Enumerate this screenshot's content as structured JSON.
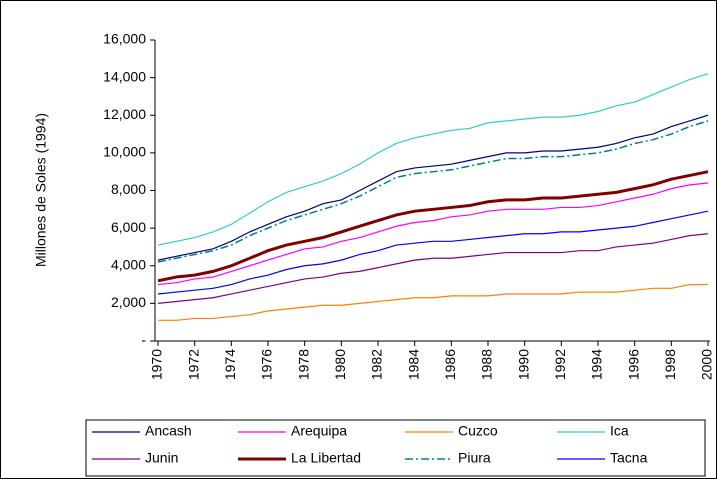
{
  "chart_data": {
    "type": "line",
    "y_label": "Millones de Soles (1994)",
    "x": [
      1970,
      1971,
      1972,
      1973,
      1974,
      1975,
      1976,
      1977,
      1978,
      1979,
      1980,
      1981,
      1982,
      1983,
      1984,
      1985,
      1986,
      1987,
      1988,
      1989,
      1990,
      1991,
      1992,
      1993,
      1994,
      1995,
      1996,
      1997,
      1998,
      1999,
      2000
    ],
    "xlim": [
      1970,
      2000
    ],
    "xticks": [
      1970,
      1972,
      1974,
      1976,
      1978,
      1980,
      1982,
      1984,
      1986,
      1988,
      1990,
      1992,
      1994,
      1996,
      1998,
      2000
    ],
    "ylim": [
      0,
      16000
    ],
    "yticks": [
      {
        "value": 0,
        "label": "-"
      },
      {
        "value": 2000,
        "label": "2,000"
      },
      {
        "value": 4000,
        "label": "4,000"
      },
      {
        "value": 6000,
        "label": "6,000"
      },
      {
        "value": 8000,
        "label": "8,000"
      },
      {
        "value": 10000,
        "label": "10,000"
      },
      {
        "value": 12000,
        "label": "12,000"
      },
      {
        "value": 14000,
        "label": "14,000"
      },
      {
        "value": 16000,
        "label": "16,000"
      }
    ],
    "grid": false,
    "legend": "bottom",
    "series": [
      {
        "name": "Ancash",
        "color": "#000080",
        "values": [
          4300,
          4500,
          4700,
          4900,
          5300,
          5800,
          6200,
          6600,
          6900,
          7300,
          7500,
          8000,
          8500,
          9000,
          9200,
          9300,
          9400,
          9600,
          9800,
          10000,
          10000,
          10100,
          10100,
          10200,
          10300,
          10500,
          10800,
          11000,
          11400,
          11700,
          12000
        ]
      },
      {
        "name": "Arequipa",
        "color": "#ff00ff",
        "values": [
          3000,
          3100,
          3300,
          3400,
          3700,
          4000,
          4300,
          4600,
          4900,
          5000,
          5300,
          5500,
          5800,
          6100,
          6300,
          6400,
          6600,
          6700,
          6900,
          7000,
          7000,
          7000,
          7100,
          7100,
          7200,
          7400,
          7600,
          7800,
          8100,
          8300,
          8400
        ]
      },
      {
        "name": "Cuzco",
        "color": "#ff8000",
        "values": [
          1100,
          1100,
          1200,
          1200,
          1300,
          1400,
          1600,
          1700,
          1800,
          1900,
          1900,
          2000,
          2100,
          2200,
          2300,
          2300,
          2400,
          2400,
          2400,
          2500,
          2500,
          2500,
          2500,
          2600,
          2600,
          2600,
          2700,
          2800,
          2800,
          3000,
          3000
        ]
      },
      {
        "name": "Ica",
        "color": "#33cccc",
        "values": [
          5100,
          5300,
          5500,
          5800,
          6200,
          6800,
          7400,
          7900,
          8200,
          8500,
          8900,
          9400,
          10000,
          10500,
          10800,
          11000,
          11200,
          11300,
          11600,
          11700,
          11800,
          11900,
          11900,
          12000,
          12200,
          12500,
          12700,
          13100,
          13500,
          13900,
          14200
        ]
      },
      {
        "name": "Junin",
        "color": "#800080",
        "values": [
          2000,
          2100,
          2200,
          2300,
          2500,
          2700,
          2900,
          3100,
          3300,
          3400,
          3600,
          3700,
          3900,
          4100,
          4300,
          4400,
          4400,
          4500,
          4600,
          4700,
          4700,
          4700,
          4700,
          4800,
          4800,
          5000,
          5100,
          5200,
          5400,
          5600,
          5700
        ]
      },
      {
        "name": "La Libertad",
        "color": "#800000",
        "line_style": "thick",
        "values": [
          3200,
          3400,
          3500,
          3700,
          4000,
          4400,
          4800,
          5100,
          5300,
          5500,
          5800,
          6100,
          6400,
          6700,
          6900,
          7000,
          7100,
          7200,
          7400,
          7500,
          7500,
          7600,
          7600,
          7700,
          7800,
          7900,
          8100,
          8300,
          8600,
          8800,
          9000
        ]
      },
      {
        "name": "Piura",
        "color": "#008080",
        "line_style": "dash-dot",
        "values": [
          4200,
          4400,
          4600,
          4800,
          5100,
          5600,
          6000,
          6400,
          6700,
          7000,
          7300,
          7700,
          8200,
          8700,
          8900,
          9000,
          9100,
          9300,
          9500,
          9700,
          9700,
          9800,
          9800,
          9900,
          10000,
          10200,
          10500,
          10700,
          11000,
          11400,
          11700
        ]
      },
      {
        "name": "Tacna",
        "color": "#0000ff",
        "values": [
          2500,
          2600,
          2700,
          2800,
          3000,
          3300,
          3500,
          3800,
          4000,
          4100,
          4300,
          4600,
          4800,
          5100,
          5200,
          5300,
          5300,
          5400,
          5500,
          5600,
          5700,
          5700,
          5800,
          5800,
          5900,
          6000,
          6100,
          6300,
          6500,
          6700,
          6900
        ]
      }
    ]
  }
}
